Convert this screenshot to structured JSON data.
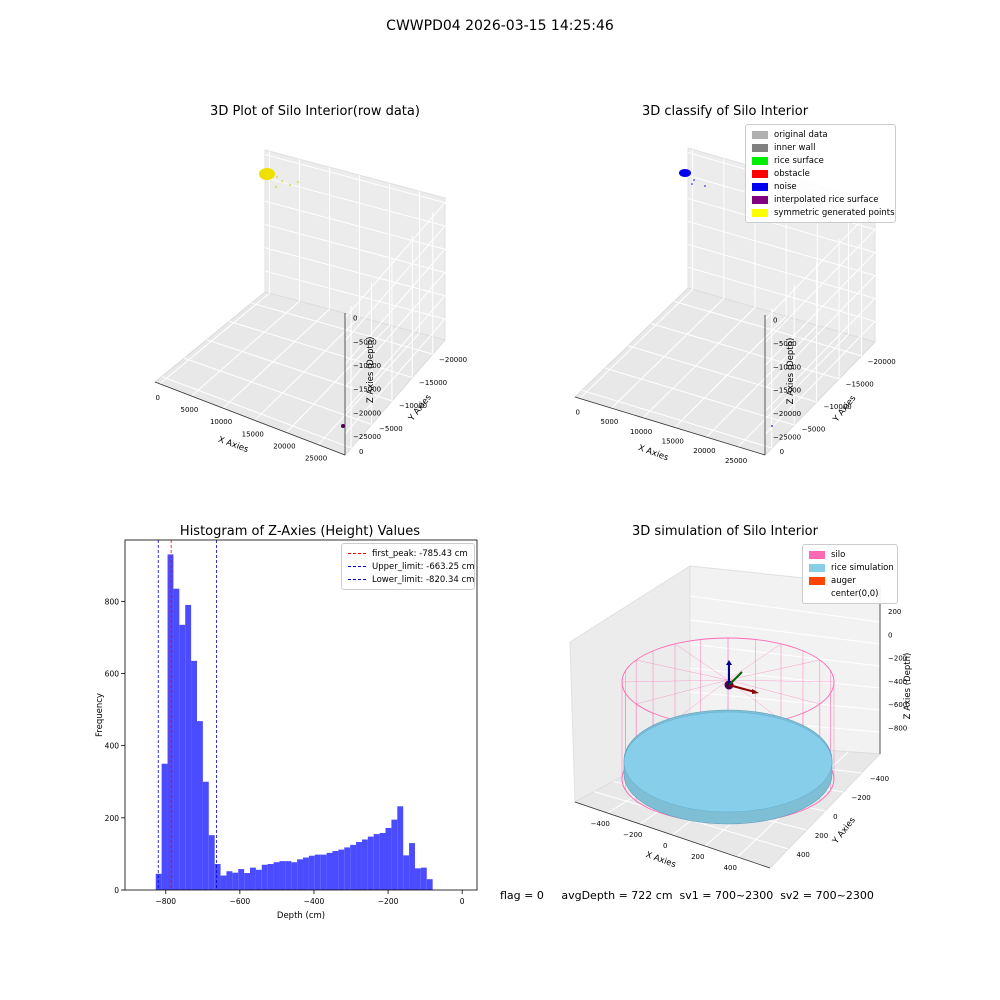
{
  "figure": {
    "suptitle": "CWWPD04 2026-03-15 14:25:46",
    "status_text": "flag = 0     avgDepth = 722 cm  sv1 = 700~2300  sv2 = 700~2300"
  },
  "chart_data": [
    {
      "type": "scatter",
      "id": "raw3d",
      "title": "3D Plot of Silo Interior(row data)",
      "xlabel": "X Axies",
      "ylabel": "Y Axies",
      "zlabel": "Z Axies (Depth)",
      "x_ticks": [
        "0",
        "5000",
        "10000",
        "15000",
        "20000",
        "25000"
      ],
      "y_ticks": [
        "0",
        "−5000",
        "−10000",
        "−15000",
        "−20000"
      ],
      "z_ticks": [
        "0",
        "−5000",
        "−10000",
        "−15000",
        "−20000",
        "−25000"
      ],
      "xlim": [
        0,
        25000
      ],
      "ylim": [
        -20000,
        0
      ],
      "zlim": [
        -27000,
        0
      ],
      "colors": {
        "main_cluster": "#f0e000",
        "outlier": "#4a0050"
      }
    },
    {
      "type": "scatter",
      "id": "classify3d",
      "title": "3D classify of Silo Interior",
      "xlabel": "X Axies",
      "ylabel": "Y Axies",
      "zlabel": "Z Axies (Depth)",
      "x_ticks": [
        "0",
        "5000",
        "10000",
        "15000",
        "20000",
        "25000"
      ],
      "y_ticks": [
        "0",
        "−5000",
        "−10000",
        "−15000",
        "−20000"
      ],
      "z_ticks": [
        "0",
        "−5000",
        "−10000",
        "−15000",
        "−20000",
        "−25000"
      ],
      "legend": [
        {
          "label": "original data",
          "color": "#b0b0b0"
        },
        {
          "label": "inner wall",
          "color": "#808080"
        },
        {
          "label": "rice surface",
          "color": "#00ee00"
        },
        {
          "label": "obstacle",
          "color": "#ff0000"
        },
        {
          "label": "noise",
          "color": "#0000ee"
        },
        {
          "label": "interpolated rice surface",
          "color": "#800080"
        },
        {
          "label": "symmetric generated points",
          "color": "#ffff00"
        }
      ]
    },
    {
      "type": "bar",
      "id": "histogram",
      "title": "Histogram of Z-Axies (Height) Values",
      "xlabel": "Depth (cm)",
      "ylabel": "Frequency",
      "xlim": [
        -910,
        40
      ],
      "ylim": [
        0,
        970
      ],
      "x_ticks": [
        -800,
        -600,
        -400,
        -200,
        0
      ],
      "y_ticks": [
        0,
        200,
        400,
        600,
        800
      ],
      "bar_color": "#4b4bff",
      "bin_start": -827,
      "bin_width": 15.9,
      "values": [
        45,
        350,
        930,
        835,
        735,
        790,
        635,
        468,
        300,
        152,
        72,
        40,
        52,
        48,
        58,
        47,
        62,
        56,
        70,
        72,
        77,
        80,
        80,
        77,
        85,
        90,
        95,
        98,
        98,
        103,
        108,
        112,
        118,
        125,
        133,
        140,
        148,
        155,
        158,
        172,
        195,
        232,
        96,
        130,
        60,
        62,
        30
      ],
      "lines": [
        {
          "label": "first_peak: -785.43 cm",
          "x": -785.43,
          "color": "#ff0000"
        },
        {
          "label": "Upper_limit: -663.25 cm",
          "x": -663.25,
          "color": "#0000cc"
        },
        {
          "label": "Lower_limit: -820.34 cm",
          "x": -820.34,
          "color": "#0000cc"
        }
      ]
    },
    {
      "type": "scatter",
      "id": "simulation3d",
      "title": "3D simulation of Silo Interior",
      "xlabel": "X Axies",
      "ylabel": "Y Axies",
      "zlabel": "Z Axies (Depth)",
      "x_ticks": [
        "−400",
        "−200",
        "0",
        "200",
        "400"
      ],
      "y_ticks": [
        "400",
        "200",
        "0",
        "−200",
        "−400"
      ],
      "z_ticks": [
        "200",
        "0",
        "−200",
        "−400",
        "−600",
        "−800"
      ],
      "legend": [
        {
          "label": "silo",
          "color": "#ff69b4"
        },
        {
          "label": "rice simulation",
          "color": "#87ceeb"
        },
        {
          "label": "auger",
          "color": "#ff4500"
        },
        {
          "label": "center(0,0)",
          "color": ""
        }
      ]
    }
  ]
}
